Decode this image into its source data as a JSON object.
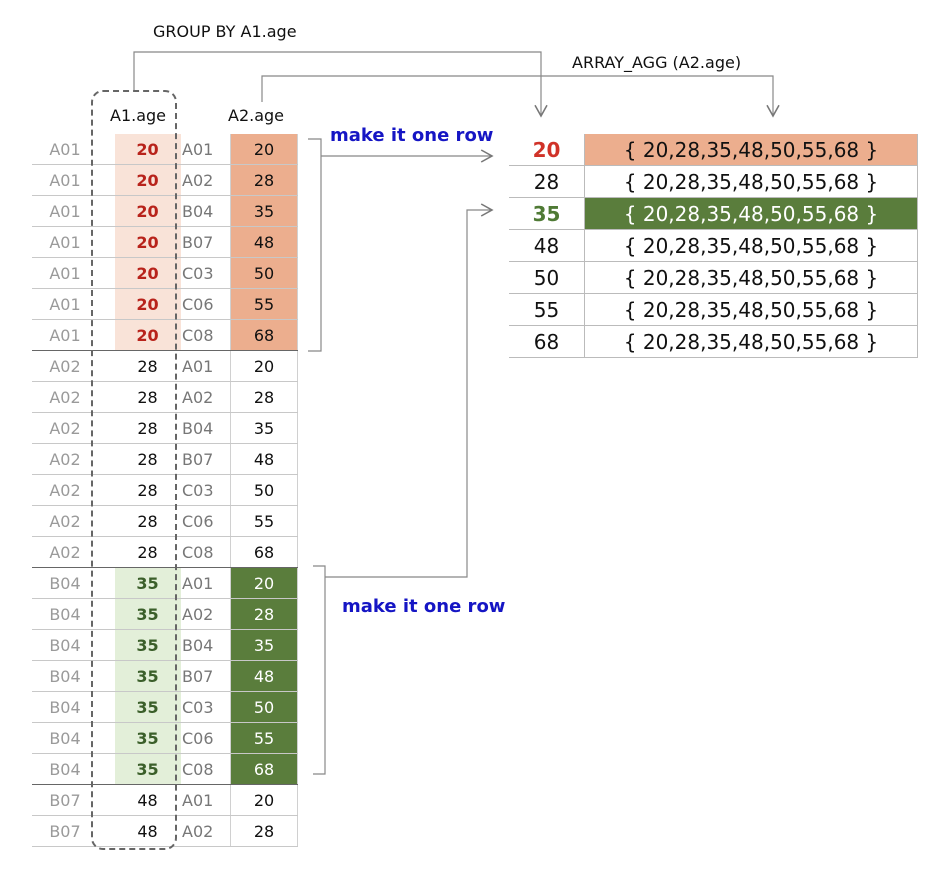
{
  "labels": {
    "group_by": "GROUP BY A1.age",
    "array_agg": "ARRAY_AGG (A2.age)",
    "col_a1_age": "A1.age",
    "col_a2_age": "A2.age",
    "note_top": "make it one row",
    "note_bottom": "make it one row"
  },
  "left_rows": [
    {
      "a1_id": "A01",
      "a1_age": "20",
      "a2_id": "A01",
      "a2_age": "20",
      "group": "g20"
    },
    {
      "a1_id": "A01",
      "a1_age": "20",
      "a2_id": "A02",
      "a2_age": "28",
      "group": "g20"
    },
    {
      "a1_id": "A01",
      "a1_age": "20",
      "a2_id": "B04",
      "a2_age": "35",
      "group": "g20"
    },
    {
      "a1_id": "A01",
      "a1_age": "20",
      "a2_id": "B07",
      "a2_age": "48",
      "group": "g20"
    },
    {
      "a1_id": "A01",
      "a1_age": "20",
      "a2_id": "C03",
      "a2_age": "50",
      "group": "g20"
    },
    {
      "a1_id": "A01",
      "a1_age": "20",
      "a2_id": "C06",
      "a2_age": "55",
      "group": "g20"
    },
    {
      "a1_id": "A01",
      "a1_age": "20",
      "a2_id": "C08",
      "a2_age": "68",
      "group": "g20"
    },
    {
      "a1_id": "A02",
      "a1_age": "28",
      "a2_id": "A01",
      "a2_age": "20",
      "group": ""
    },
    {
      "a1_id": "A02",
      "a1_age": "28",
      "a2_id": "A02",
      "a2_age": "28",
      "group": ""
    },
    {
      "a1_id": "A02",
      "a1_age": "28",
      "a2_id": "B04",
      "a2_age": "35",
      "group": ""
    },
    {
      "a1_id": "A02",
      "a1_age": "28",
      "a2_id": "B07",
      "a2_age": "48",
      "group": ""
    },
    {
      "a1_id": "A02",
      "a1_age": "28",
      "a2_id": "C03",
      "a2_age": "50",
      "group": ""
    },
    {
      "a1_id": "A02",
      "a1_age": "28",
      "a2_id": "C06",
      "a2_age": "55",
      "group": ""
    },
    {
      "a1_id": "A02",
      "a1_age": "28",
      "a2_id": "C08",
      "a2_age": "68",
      "group": ""
    },
    {
      "a1_id": "B04",
      "a1_age": "35",
      "a2_id": "A01",
      "a2_age": "20",
      "group": "g35"
    },
    {
      "a1_id": "B04",
      "a1_age": "35",
      "a2_id": "A02",
      "a2_age": "28",
      "group": "g35"
    },
    {
      "a1_id": "B04",
      "a1_age": "35",
      "a2_id": "B04",
      "a2_age": "35",
      "group": "g35"
    },
    {
      "a1_id": "B04",
      "a1_age": "35",
      "a2_id": "B07",
      "a2_age": "48",
      "group": "g35"
    },
    {
      "a1_id": "B04",
      "a1_age": "35",
      "a2_id": "C03",
      "a2_age": "50",
      "group": "g35"
    },
    {
      "a1_id": "B04",
      "a1_age": "35",
      "a2_id": "C06",
      "a2_age": "55",
      "group": "g35"
    },
    {
      "a1_id": "B04",
      "a1_age": "35",
      "a2_id": "C08",
      "a2_age": "68",
      "group": "g35"
    },
    {
      "a1_id": "B07",
      "a1_age": "48",
      "a2_id": "A01",
      "a2_age": "20",
      "group": ""
    },
    {
      "a1_id": "B07",
      "a1_age": "48",
      "a2_id": "A02",
      "a2_age": "28",
      "group": ""
    }
  ],
  "result_rows": [
    {
      "age": "20",
      "array": "{ 20,28,35,48,50,55,68 }",
      "highlight": "r20"
    },
    {
      "age": "28",
      "array": "{ 20,28,35,48,50,55,68 }",
      "highlight": ""
    },
    {
      "age": "35",
      "array": "{ 20,28,35,48,50,55,68 }",
      "highlight": "r35"
    },
    {
      "age": "48",
      "array": "{ 20,28,35,48,50,55,68 }",
      "highlight": ""
    },
    {
      "age": "50",
      "array": "{ 20,28,35,48,50,55,68 }",
      "highlight": ""
    },
    {
      "age": "55",
      "array": "{ 20,28,35,48,50,55,68 }",
      "highlight": ""
    },
    {
      "age": "68",
      "array": "{ 20,28,35,48,50,55,68 }",
      "highlight": ""
    }
  ],
  "colors": {
    "orange_light": "#f9e3d8",
    "orange": "#ecae8e",
    "red_text": "#b8231b",
    "green_light": "#e3efd9",
    "green": "#5a7d3c",
    "note_blue": "#1515c4"
  }
}
